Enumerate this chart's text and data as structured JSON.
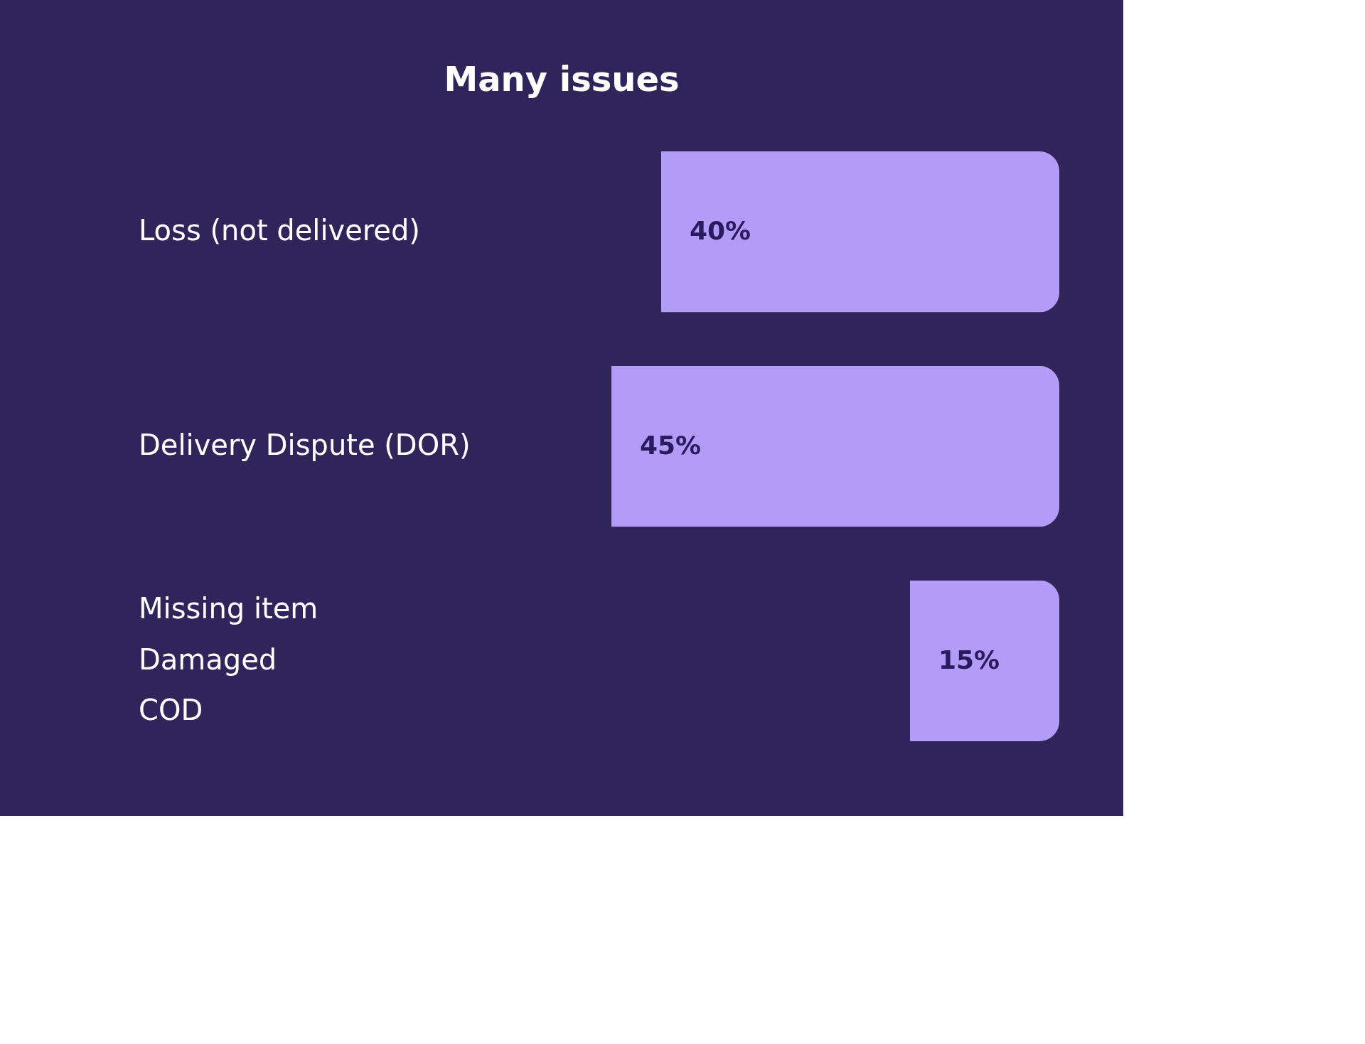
{
  "chart_data": {
    "type": "bar",
    "orientation": "horizontal",
    "title": "Many issues",
    "categories": [
      "Loss (not delivered)",
      "Delivery Dispute (DOR)",
      null
    ],
    "values": [
      40,
      45,
      15
    ],
    "value_labels": [
      "40%",
      "45%",
      "15%"
    ],
    "color": "#b39cf7",
    "annotations": [
      "Missing item",
      "Damaged",
      "COD"
    ]
  }
}
